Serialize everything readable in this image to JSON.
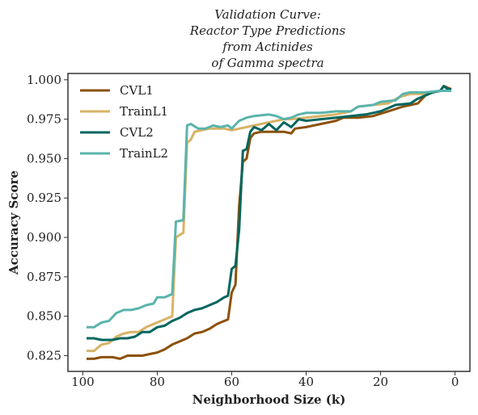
{
  "chart_data": {
    "type": "line",
    "title": [
      "Validation Curve:",
      "Reactor Type Predictions",
      "from Actinides",
      "of Gamma spectra"
    ],
    "xlabel": "Neighborhood Size (k)",
    "ylabel": "Accuracy Score",
    "xlim": [
      104,
      -4
    ],
    "ylim": [
      0.815,
      1.004
    ],
    "xticks": [
      100,
      80,
      60,
      40,
      20,
      0
    ],
    "yticks": [
      0.825,
      0.85,
      0.875,
      0.9,
      0.925,
      0.95,
      0.975,
      1.0
    ],
    "ytick_labels": [
      "0.825",
      "0.850",
      "0.875",
      "0.900",
      "0.925",
      "0.950",
      "0.975",
      "1.000"
    ],
    "grid": false,
    "legend_position": "top-left",
    "series": [
      {
        "name": "CVL1",
        "color": "#8c510a",
        "points": [
          [
            99,
            0.823
          ],
          [
            97,
            0.823
          ],
          [
            95,
            0.824
          ],
          [
            92,
            0.824
          ],
          [
            90,
            0.823
          ],
          [
            88,
            0.825
          ],
          [
            86,
            0.825
          ],
          [
            84,
            0.825
          ],
          [
            82,
            0.826
          ],
          [
            80,
            0.827
          ],
          [
            78,
            0.829
          ],
          [
            76,
            0.832
          ],
          [
            74,
            0.834
          ],
          [
            72,
            0.836
          ],
          [
            70,
            0.839
          ],
          [
            68,
            0.84
          ],
          [
            66,
            0.842
          ],
          [
            64,
            0.845
          ],
          [
            62,
            0.847
          ],
          [
            61,
            0.848
          ],
          [
            60,
            0.865
          ],
          [
            59,
            0.87
          ],
          [
            58,
            0.92
          ],
          [
            57,
            0.948
          ],
          [
            56,
            0.95
          ],
          [
            55,
            0.963
          ],
          [
            54,
            0.966
          ],
          [
            52,
            0.967
          ],
          [
            50,
            0.967
          ],
          [
            48,
            0.967
          ],
          [
            46,
            0.967
          ],
          [
            44,
            0.966
          ],
          [
            43,
            0.969
          ],
          [
            40,
            0.97
          ],
          [
            36,
            0.972
          ],
          [
            32,
            0.974
          ],
          [
            30,
            0.976
          ],
          [
            26,
            0.976
          ],
          [
            22,
            0.977
          ],
          [
            18,
            0.98
          ],
          [
            14,
            0.983
          ],
          [
            10,
            0.985
          ],
          [
            8,
            0.99
          ],
          [
            6,
            0.992
          ],
          [
            4,
            0.993
          ],
          [
            3,
            0.996
          ],
          [
            1,
            0.994
          ]
        ]
      },
      {
        "name": "TrainL1",
        "color": "#d8b365",
        "points": [
          [
            99,
            0.828
          ],
          [
            97,
            0.828
          ],
          [
            95,
            0.832
          ],
          [
            93,
            0.833
          ],
          [
            91,
            0.837
          ],
          [
            89,
            0.839
          ],
          [
            87,
            0.84
          ],
          [
            85,
            0.84
          ],
          [
            83,
            0.843
          ],
          [
            81,
            0.845
          ],
          [
            79,
            0.847
          ],
          [
            77,
            0.849
          ],
          [
            76,
            0.85
          ],
          [
            75,
            0.9
          ],
          [
            73,
            0.903
          ],
          [
            72,
            0.96
          ],
          [
            71,
            0.962
          ],
          [
            70,
            0.967
          ],
          [
            68,
            0.968
          ],
          [
            66,
            0.969
          ],
          [
            64,
            0.969
          ],
          [
            62,
            0.969
          ],
          [
            60,
            0.968
          ],
          [
            58,
            0.969
          ],
          [
            56,
            0.97
          ],
          [
            54,
            0.971
          ],
          [
            52,
            0.972
          ],
          [
            50,
            0.973
          ],
          [
            48,
            0.974
          ],
          [
            46,
            0.975
          ],
          [
            44,
            0.975
          ],
          [
            40,
            0.976
          ],
          [
            36,
            0.977
          ],
          [
            32,
            0.978
          ],
          [
            28,
            0.98
          ],
          [
            26,
            0.983
          ],
          [
            22,
            0.984
          ],
          [
            18,
            0.985
          ],
          [
            15,
            0.989
          ],
          [
            12,
            0.991
          ],
          [
            8,
            0.991
          ],
          [
            4,
            0.993
          ],
          [
            1,
            0.993
          ]
        ]
      },
      {
        "name": "CVL2",
        "color": "#01665e",
        "points": [
          [
            99,
            0.836
          ],
          [
            97,
            0.836
          ],
          [
            95,
            0.835
          ],
          [
            92,
            0.835
          ],
          [
            90,
            0.836
          ],
          [
            88,
            0.836
          ],
          [
            86,
            0.837
          ],
          [
            84,
            0.84
          ],
          [
            82,
            0.84
          ],
          [
            80,
            0.843
          ],
          [
            78,
            0.844
          ],
          [
            76,
            0.847
          ],
          [
            74,
            0.849
          ],
          [
            72,
            0.852
          ],
          [
            70,
            0.854
          ],
          [
            68,
            0.855
          ],
          [
            66,
            0.857
          ],
          [
            64,
            0.859
          ],
          [
            62,
            0.862
          ],
          [
            61,
            0.863
          ],
          [
            60,
            0.88
          ],
          [
            59,
            0.882
          ],
          [
            58,
            0.905
          ],
          [
            57,
            0.955
          ],
          [
            56,
            0.956
          ],
          [
            55,
            0.967
          ],
          [
            54,
            0.97
          ],
          [
            52,
            0.968
          ],
          [
            50,
            0.972
          ],
          [
            48,
            0.968
          ],
          [
            46,
            0.973
          ],
          [
            44,
            0.97
          ],
          [
            42,
            0.975
          ],
          [
            40,
            0.974
          ],
          [
            36,
            0.975
          ],
          [
            32,
            0.976
          ],
          [
            28,
            0.977
          ],
          [
            24,
            0.978
          ],
          [
            20,
            0.98
          ],
          [
            16,
            0.984
          ],
          [
            12,
            0.985
          ],
          [
            10,
            0.988
          ],
          [
            8,
            0.99
          ],
          [
            6,
            0.992
          ],
          [
            4,
            0.993
          ],
          [
            3,
            0.996
          ],
          [
            2,
            0.994
          ],
          [
            1,
            0.994
          ]
        ]
      },
      {
        "name": "TrainL2",
        "color": "#5ab4ac",
        "points": [
          [
            99,
            0.843
          ],
          [
            97,
            0.843
          ],
          [
            95,
            0.846
          ],
          [
            93,
            0.847
          ],
          [
            91,
            0.852
          ],
          [
            89,
            0.854
          ],
          [
            87,
            0.854
          ],
          [
            85,
            0.855
          ],
          [
            83,
            0.857
          ],
          [
            81,
            0.858
          ],
          [
            80,
            0.862
          ],
          [
            78,
            0.862
          ],
          [
            76,
            0.864
          ],
          [
            75,
            0.91
          ],
          [
            73,
            0.911
          ],
          [
            72,
            0.971
          ],
          [
            71,
            0.972
          ],
          [
            69,
            0.969
          ],
          [
            67,
            0.969
          ],
          [
            65,
            0.971
          ],
          [
            63,
            0.97
          ],
          [
            61,
            0.971
          ],
          [
            60,
            0.969
          ],
          [
            58,
            0.974
          ],
          [
            56,
            0.976
          ],
          [
            54,
            0.977
          ],
          [
            50,
            0.978
          ],
          [
            48,
            0.977
          ],
          [
            46,
            0.975
          ],
          [
            44,
            0.976
          ],
          [
            42,
            0.978
          ],
          [
            40,
            0.979
          ],
          [
            36,
            0.979
          ],
          [
            32,
            0.98
          ],
          [
            28,
            0.98
          ],
          [
            26,
            0.983
          ],
          [
            22,
            0.984
          ],
          [
            20,
            0.986
          ],
          [
            16,
            0.987
          ],
          [
            14,
            0.991
          ],
          [
            12,
            0.992
          ],
          [
            8,
            0.992
          ],
          [
            4,
            0.993
          ],
          [
            1,
            0.993
          ]
        ]
      }
    ]
  }
}
